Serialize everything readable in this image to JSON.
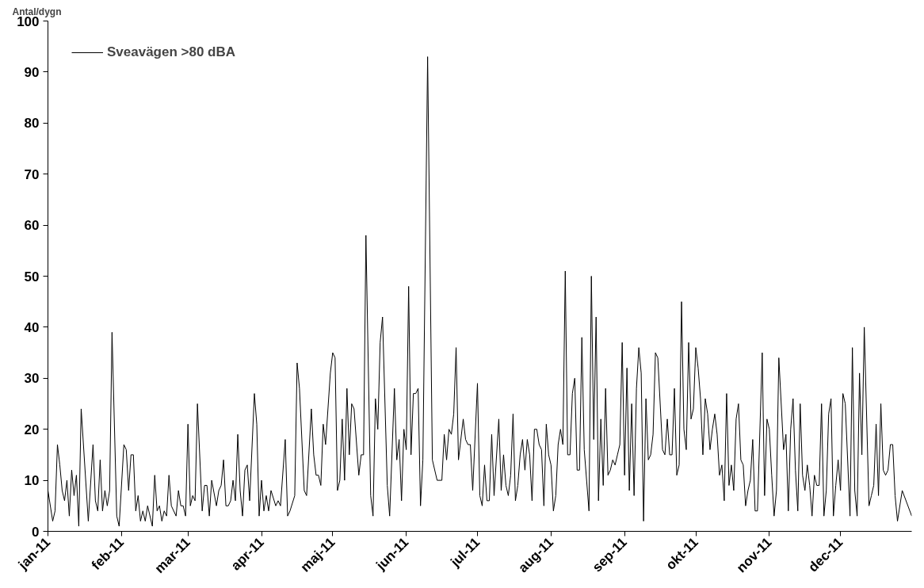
{
  "chart_data": {
    "type": "line",
    "ylabel": "Antal/dygn",
    "ylim": [
      0,
      100
    ],
    "yticks": [
      0,
      10,
      20,
      30,
      40,
      50,
      60,
      70,
      80,
      90,
      100
    ],
    "xlim": [
      "2011-01-01",
      "2011-12-31"
    ],
    "xticks": [
      {
        "value": "2011-01-01",
        "label": "jan-11"
      },
      {
        "value": "2011-02-01",
        "label": "feb-11"
      },
      {
        "value": "2011-03-01",
        "label": "mar-11"
      },
      {
        "value": "2011-04-01",
        "label": "apr-11"
      },
      {
        "value": "2011-05-01",
        "label": "maj-11"
      },
      {
        "value": "2011-06-01",
        "label": "jun-11"
      },
      {
        "value": "2011-07-01",
        "label": "jul-11"
      },
      {
        "value": "2011-08-01",
        "label": "aug-11"
      },
      {
        "value": "2011-09-01",
        "label": "sep-11"
      },
      {
        "value": "2011-10-01",
        "label": "okt-11"
      },
      {
        "value": "2011-11-01",
        "label": "nov-11"
      },
      {
        "value": "2011-12-01",
        "label": "dec-11"
      }
    ],
    "grid": false,
    "legend": "top left",
    "marker": "none",
    "line_style": "solid",
    "x": [
      "2011-01-01",
      "2011-01-03",
      "2011-01-04",
      "2011-01-05",
      "2011-01-06",
      "2011-01-07",
      "2011-01-08",
      "2011-01-09",
      "2011-01-10",
      "2011-01-11",
      "2011-01-12",
      "2011-01-13",
      "2011-01-14",
      "2011-01-15",
      "2011-01-18",
      "2011-01-20",
      "2011-01-21",
      "2011-01-22",
      "2011-01-23",
      "2011-01-24",
      "2011-01-25",
      "2011-01-26",
      "2011-01-27",
      "2011-01-28",
      "2011-01-30",
      "2011-01-31",
      "2011-02-02",
      "2011-02-03",
      "2011-02-04",
      "2011-02-05",
      "2011-02-06",
      "2011-02-07",
      "2011-02-08",
      "2011-02-09",
      "2011-02-10",
      "2011-02-11",
      "2011-02-12",
      "2011-02-14",
      "2011-02-15",
      "2011-02-16",
      "2011-02-17",
      "2011-02-18",
      "2011-02-19",
      "2011-02-20",
      "2011-02-21",
      "2011-02-22",
      "2011-02-24",
      "2011-02-25",
      "2011-02-26",
      "2011-02-27",
      "2011-02-28",
      "2011-03-01",
      "2011-03-02",
      "2011-03-03",
      "2011-03-04",
      "2011-03-05",
      "2011-03-07",
      "2011-03-08",
      "2011-03-09",
      "2011-03-10",
      "2011-03-11",
      "2011-03-13",
      "2011-03-14",
      "2011-03-15",
      "2011-03-16",
      "2011-03-17",
      "2011-03-18",
      "2011-03-19",
      "2011-03-20",
      "2011-03-21",
      "2011-03-22",
      "2011-03-23",
      "2011-03-24",
      "2011-03-25",
      "2011-03-26",
      "2011-03-27",
      "2011-03-29",
      "2011-03-30",
      "2011-03-31",
      "2011-04-01",
      "2011-04-02",
      "2011-04-03",
      "2011-04-04",
      "2011-04-05",
      "2011-04-07",
      "2011-04-08",
      "2011-04-09",
      "2011-04-11",
      "2011-04-12",
      "2011-04-13",
      "2011-04-15",
      "2011-04-16",
      "2011-04-17",
      "2011-04-19",
      "2011-04-20",
      "2011-04-22",
      "2011-04-23",
      "2011-04-24",
      "2011-04-25",
      "2011-04-26",
      "2011-04-27",
      "2011-04-28",
      "2011-04-30",
      "2011-05-01",
      "2011-05-02",
      "2011-05-03",
      "2011-05-04",
      "2011-05-05",
      "2011-05-06",
      "2011-05-07",
      "2011-05-08",
      "2011-05-09",
      "2011-05-10",
      "2011-05-12",
      "2011-05-13",
      "2011-05-14",
      "2011-05-15",
      "2011-05-17",
      "2011-05-18",
      "2011-05-19",
      "2011-05-20",
      "2011-05-21",
      "2011-05-22",
      "2011-05-24",
      "2011-05-25",
      "2011-05-27",
      "2011-05-28",
      "2011-05-29",
      "2011-05-30",
      "2011-05-31",
      "2011-06-01",
      "2011-06-02",
      "2011-06-03",
      "2011-06-04",
      "2011-06-05",
      "2011-06-06",
      "2011-06-07",
      "2011-06-08",
      "2011-06-10",
      "2011-06-12",
      "2011-06-14",
      "2011-06-16",
      "2011-06-17",
      "2011-06-18",
      "2011-06-19",
      "2011-06-20",
      "2011-06-21",
      "2011-06-22",
      "2011-06-23",
      "2011-06-25",
      "2011-06-26",
      "2011-06-27",
      "2011-06-28",
      "2011-06-29",
      "2011-07-01",
      "2011-07-02",
      "2011-07-03",
      "2011-07-04",
      "2011-07-05",
      "2011-07-06",
      "2011-07-07",
      "2011-07-08",
      "2011-07-10",
      "2011-07-11",
      "2011-07-12",
      "2011-07-13",
      "2011-07-14",
      "2011-07-15",
      "2011-07-16",
      "2011-07-17",
      "2011-07-18",
      "2011-07-19",
      "2011-07-20",
      "2011-07-21",
      "2011-07-22",
      "2011-07-23",
      "2011-07-24",
      "2011-07-25",
      "2011-07-26",
      "2011-07-27",
      "2011-07-28",
      "2011-07-29",
      "2011-07-30",
      "2011-07-31",
      "2011-08-01",
      "2011-08-02",
      "2011-08-03",
      "2011-08-04",
      "2011-08-05",
      "2011-08-06",
      "2011-08-07",
      "2011-08-08",
      "2011-08-09",
      "2011-08-10",
      "2011-08-11",
      "2011-08-12",
      "2011-08-13",
      "2011-08-14",
      "2011-08-15",
      "2011-08-17",
      "2011-08-18",
      "2011-08-19",
      "2011-08-20",
      "2011-08-21",
      "2011-08-22",
      "2011-08-23",
      "2011-08-24",
      "2011-08-25",
      "2011-08-26",
      "2011-08-27",
      "2011-08-28",
      "2011-08-29",
      "2011-08-30",
      "2011-08-31",
      "2011-09-01",
      "2011-09-02",
      "2011-09-03",
      "2011-09-04",
      "2011-09-05",
      "2011-09-06",
      "2011-09-07",
      "2011-09-08",
      "2011-09-09",
      "2011-09-10",
      "2011-09-11",
      "2011-09-12",
      "2011-09-13",
      "2011-09-14",
      "2011-09-15",
      "2011-09-17",
      "2011-09-18",
      "2011-09-19",
      "2011-09-20",
      "2011-09-21",
      "2011-09-22",
      "2011-09-23",
      "2011-09-24",
      "2011-09-25",
      "2011-09-26",
      "2011-09-27",
      "2011-09-28",
      "2011-09-29",
      "2011-09-30",
      "2011-10-01",
      "2011-10-02",
      "2011-10-03",
      "2011-10-04",
      "2011-10-05",
      "2011-10-06",
      "2011-10-07",
      "2011-10-08",
      "2011-10-09",
      "2011-10-10",
      "2011-10-11",
      "2011-10-12",
      "2011-10-13",
      "2011-10-14",
      "2011-10-15",
      "2011-10-16",
      "2011-10-17",
      "2011-10-18",
      "2011-10-19",
      "2011-10-20",
      "2011-10-21",
      "2011-10-22",
      "2011-10-23",
      "2011-10-24",
      "2011-10-25",
      "2011-10-26",
      "2011-10-27",
      "2011-10-29",
      "2011-10-30",
      "2011-10-31",
      "2011-11-01",
      "2011-11-02",
      "2011-11-03",
      "2011-11-04",
      "2011-11-05",
      "2011-11-07",
      "2011-11-08",
      "2011-11-09",
      "2011-11-10",
      "2011-11-11",
      "2011-11-12",
      "2011-11-13",
      "2011-11-14",
      "2011-11-15",
      "2011-11-16",
      "2011-11-17",
      "2011-11-18",
      "2011-11-19",
      "2011-11-20",
      "2011-11-21",
      "2011-11-22",
      "2011-11-23",
      "2011-11-24",
      "2011-11-25",
      "2011-11-26",
      "2011-11-27",
      "2011-11-28",
      "2011-11-29",
      "2011-11-30",
      "2011-12-01",
      "2011-12-02",
      "2011-12-03",
      "2011-12-05",
      "2011-12-06",
      "2011-12-07",
      "2011-12-08",
      "2011-12-09",
      "2011-12-10",
      "2011-12-11",
      "2011-12-13",
      "2011-12-14",
      "2011-12-15",
      "2011-12-16",
      "2011-12-17",
      "2011-12-18",
      "2011-12-19",
      "2011-12-20",
      "2011-12-21",
      "2011-12-22",
      "2011-12-23",
      "2011-12-24",
      "2011-12-25",
      "2011-12-27",
      "2011-12-31"
    ],
    "series": [
      {
        "name": "Sveavägen >80 dBA",
        "color": "#000000",
        "values": [
          8,
          2,
          4,
          17,
          13,
          8,
          6,
          10,
          3,
          12,
          7,
          11,
          1,
          24,
          2,
          17,
          6,
          4,
          14,
          4,
          8,
          5,
          8,
          39,
          3,
          1,
          17,
          16,
          8,
          15,
          15,
          4,
          7,
          2,
          4,
          2,
          5,
          1,
          11,
          4,
          5,
          2,
          4,
          3,
          11,
          5,
          3,
          8,
          5,
          5,
          3,
          21,
          5,
          7,
          6,
          25,
          4,
          9,
          9,
          3,
          10,
          5,
          8,
          9,
          14,
          5,
          5,
          6,
          10,
          6,
          19,
          8,
          3,
          12,
          13,
          6,
          27,
          21,
          3,
          10,
          4,
          7,
          4,
          8,
          5,
          6,
          5,
          18,
          3,
          4,
          7,
          33,
          28,
          8,
          7,
          24,
          15,
          11,
          11,
          9,
          21,
          17,
          31,
          35,
          34,
          8,
          10,
          22,
          10,
          28,
          15,
          25,
          24,
          11,
          15,
          15,
          58,
          7,
          3,
          26,
          20,
          37,
          42,
          9,
          3,
          28,
          14,
          18,
          6,
          20,
          16,
          48,
          15,
          27,
          27,
          28,
          5,
          14,
          93,
          14,
          10,
          10,
          19,
          14,
          20,
          19,
          23,
          36,
          14,
          22,
          18,
          17,
          17,
          8,
          29,
          7,
          5,
          13,
          6,
          6,
          19,
          7,
          22,
          8,
          15,
          9,
          7,
          11,
          23,
          6,
          9,
          15,
          18,
          12,
          18,
          15,
          6,
          20,
          20,
          17,
          16,
          5,
          21,
          15,
          13,
          4,
          7,
          17,
          20,
          17,
          51,
          15,
          15,
          27,
          30,
          12,
          12,
          38,
          16,
          4,
          50,
          18,
          42,
          6,
          22,
          9,
          28,
          11,
          12,
          14,
          13,
          15,
          17,
          37,
          11,
          32,
          8,
          25,
          7,
          28,
          36,
          31,
          2,
          26,
          14,
          15,
          19,
          35,
          34,
          16,
          15,
          22,
          15,
          15,
          28,
          11,
          13,
          45,
          20,
          16,
          37,
          22,
          24,
          36,
          32,
          26,
          15,
          26,
          23,
          16,
          20,
          23,
          19,
          11,
          13,
          6,
          27,
          9,
          13,
          8,
          22,
          25,
          14,
          13,
          5,
          8,
          10,
          18,
          4,
          4,
          35,
          7,
          22,
          20,
          11,
          3,
          8,
          34,
          16,
          19,
          4,
          20,
          26,
          12,
          4,
          25,
          11,
          8,
          13,
          9,
          3,
          11,
          9,
          9,
          25,
          3,
          8,
          23,
          26,
          3,
          9,
          14,
          8,
          27,
          25,
          3,
          36,
          8,
          3,
          31,
          15,
          40,
          5,
          7,
          9,
          21,
          7,
          25,
          12,
          11,
          12,
          17,
          17,
          7,
          2,
          8,
          3
        ]
      }
    ]
  }
}
